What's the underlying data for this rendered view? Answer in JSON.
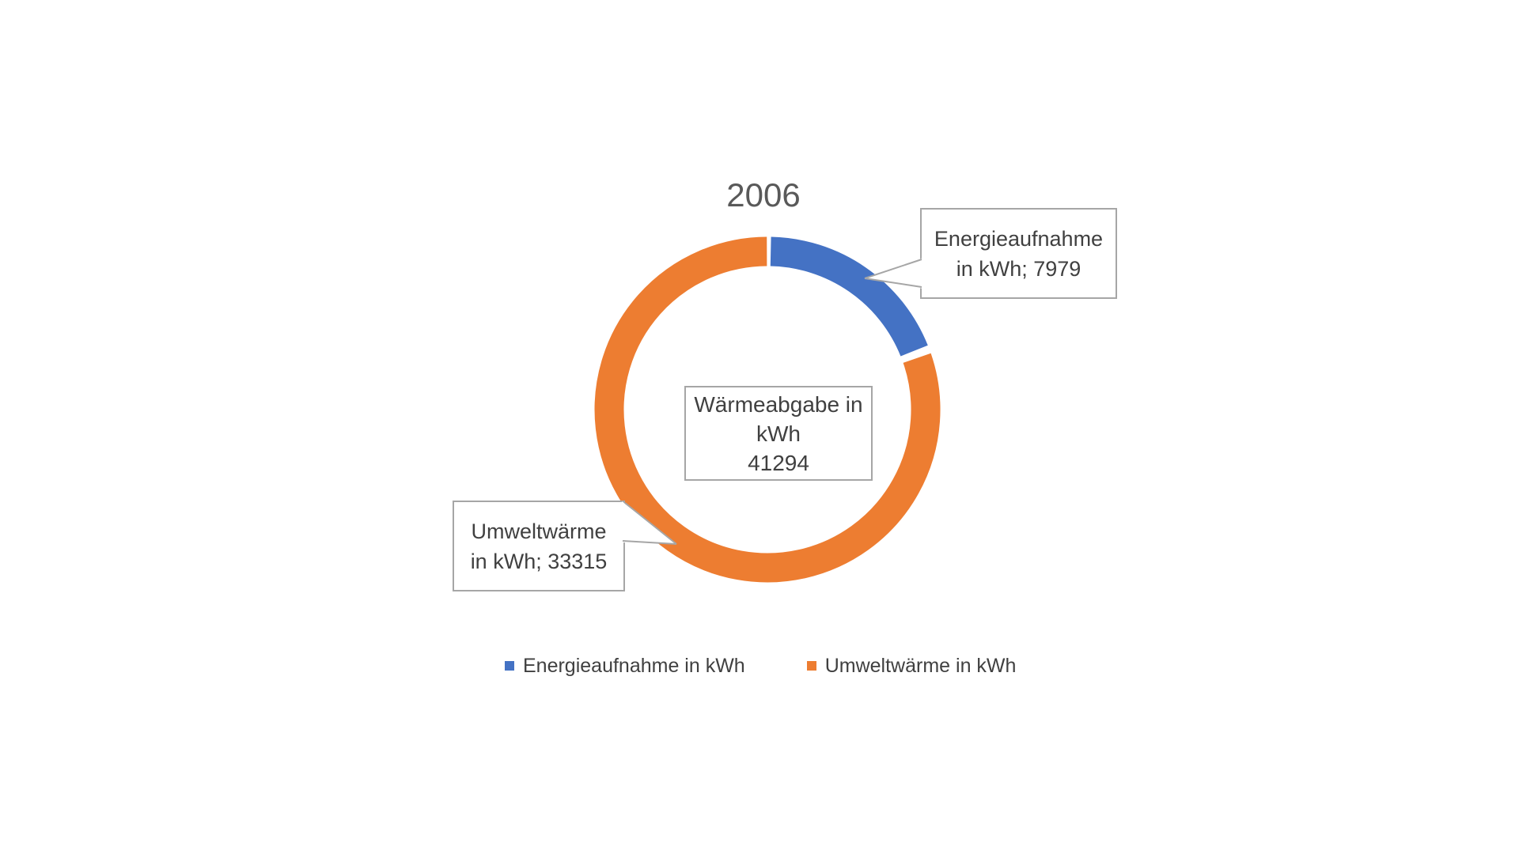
{
  "chart_title": "2006",
  "chart_data": {
    "type": "pie",
    "subtype": "doughnut",
    "title": "2006",
    "categories": [
      "Energieaufnahme in kWh",
      "Umweltwärme in kWh"
    ],
    "values": [
      7979,
      33315
    ],
    "slices": [
      {
        "label": "Energieaufnahme in kWh",
        "value": 7979,
        "color": "#4472C4"
      },
      {
        "label": "Umweltwärme in kWh",
        "value": 33315,
        "color": "#ED7D31"
      }
    ],
    "total": 41294,
    "center_label": "Wärmeabgabe in kWh 41294",
    "start_angle_deg": 0,
    "direction": "clockwise",
    "donut_hole": true,
    "legend_position": "bottom",
    "data_labels": [
      "Energieaufnahme in kWh; 7979",
      "Umweltwärme in kWh; 33315"
    ]
  },
  "callouts": {
    "energieaufnahme": {
      "line1": "Energieaufnahme",
      "line2": "in kWh; 7979"
    },
    "umweltwaerme": {
      "line1": "Umweltwärme",
      "line2": "in kWh; 33315"
    }
  },
  "center_box": {
    "line1": "Wärmeabgabe in",
    "line2": "kWh",
    "line3": "41294"
  },
  "legend": {
    "items": [
      {
        "label": "Energieaufnahme in kWh",
        "color": "#4472C4"
      },
      {
        "label": "Umweltwärme in kWh",
        "color": "#ED7D31"
      }
    ]
  },
  "colors": {
    "series_blue": "#4472C4",
    "series_orange": "#ED7D31",
    "label_text": "#404040",
    "title_text": "#595959",
    "box_border": "#A6A6A6",
    "background": "#FFFFFF"
  }
}
